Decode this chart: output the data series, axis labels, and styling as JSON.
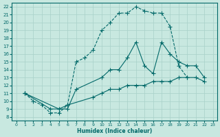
{
  "xlabel": "Humidex (Indice chaleur)",
  "bg_color": "#c8e8e0",
  "grid_color": "#a8d0c8",
  "line_color": "#006868",
  "xlim": [
    -0.5,
    23.5
  ],
  "ylim": [
    7.5,
    22.5
  ],
  "xticks": [
    0,
    1,
    2,
    3,
    4,
    5,
    6,
    7,
    8,
    9,
    10,
    11,
    12,
    13,
    14,
    15,
    16,
    17,
    18,
    19,
    20,
    21,
    22,
    23
  ],
  "yticks": [
    8,
    9,
    10,
    11,
    12,
    13,
    14,
    15,
    16,
    17,
    18,
    19,
    20,
    21,
    22
  ],
  "line1_x": [
    1,
    2,
    3,
    4,
    5,
    6,
    7,
    8,
    9,
    10,
    11,
    12,
    13,
    14,
    15,
    16,
    17,
    18,
    19,
    20
  ],
  "line1_y": [
    11,
    10,
    9.5,
    8.5,
    8.5,
    9.5,
    15,
    15.5,
    16.5,
    19,
    20,
    21.2,
    21.2,
    22,
    21.5,
    21.2,
    21.2,
    19.5,
    14.5,
    13
  ],
  "line2_x": [
    1,
    5,
    6,
    7,
    10,
    11,
    12,
    13,
    14,
    15,
    16,
    17,
    18,
    19,
    20,
    21,
    22
  ],
  "line2_y": [
    11,
    9,
    9,
    11.5,
    13,
    14,
    14,
    15.5,
    17.5,
    14.5,
    13.5,
    17.5,
    16,
    15,
    14.5,
    14.5,
    13
  ],
  "line3_x": [
    1,
    4,
    5,
    6,
    9,
    10,
    11,
    12,
    13,
    14,
    15,
    16,
    17,
    18,
    19,
    20,
    21,
    22
  ],
  "line3_y": [
    11,
    9,
    9,
    9.5,
    10.5,
    11,
    11.5,
    11.5,
    12,
    12,
    12,
    12.5,
    12.5,
    12.5,
    13,
    13,
    13,
    12.5
  ]
}
